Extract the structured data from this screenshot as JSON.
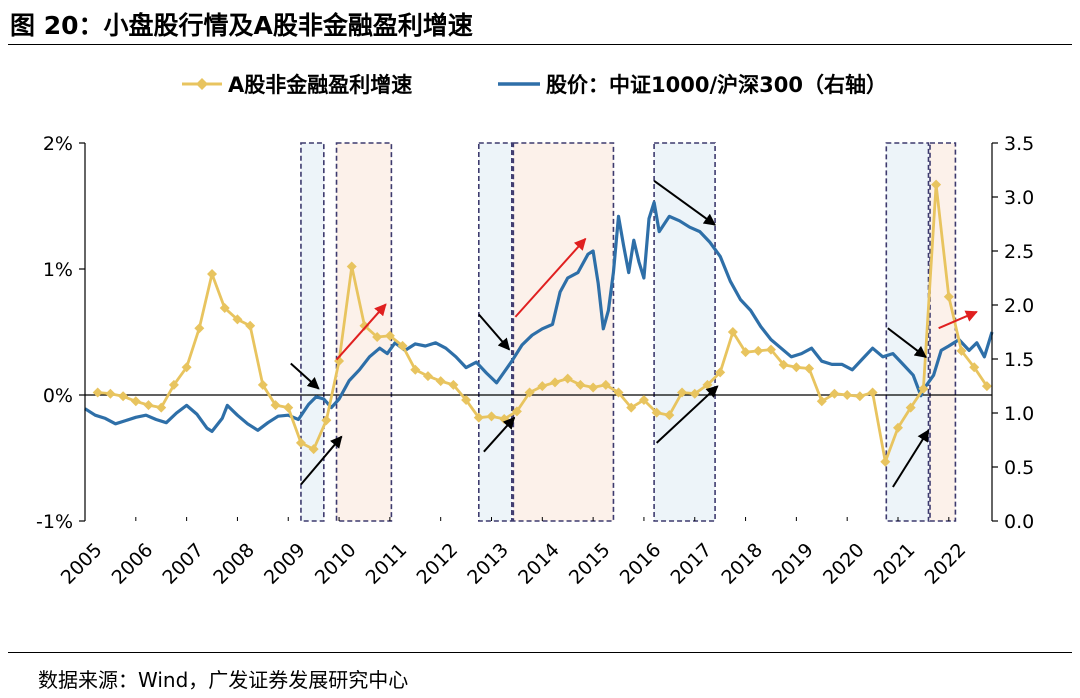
{
  "figure_title": "图 20：小盘股行情及A股非金融盈利增速",
  "source": "数据来源：Wind，广发证券发展研究中心",
  "colors": {
    "earnings": "#E8C45F",
    "price": "#2E6FA8",
    "shade_blue": "#EDF4F9",
    "shade_pink": "#FCF1EA",
    "box": "#3D3A6E",
    "arrow_black": "#000000",
    "arrow_red": "#E02020"
  },
  "chart_data": {
    "type": "line",
    "legend": [
      "A股非金融盈利增速",
      "股价：中证1000/沪深300（右轴）"
    ],
    "x_tick_labels": [
      "2005",
      "2006",
      "2007",
      "2008",
      "2009",
      "2010",
      "2011",
      "2012",
      "2013",
      "2014",
      "2015",
      "2016",
      "2017",
      "2018",
      "2019",
      "2020",
      "2021",
      "2022"
    ],
    "xlim": [
      2005.0,
      2022.85
    ],
    "y_left": {
      "ticks": [
        "-1%",
        "0%",
        "1%",
        "2%"
      ],
      "values": [
        -1,
        0,
        1,
        2
      ],
      "ylim": [
        -1,
        2
      ],
      "unit": "%"
    },
    "y_right": {
      "ticks": [
        "0.0",
        "0.5",
        "1.0",
        "1.5",
        "2.0",
        "2.5",
        "3.0",
        "3.5"
      ],
      "values": [
        0,
        0.5,
        1,
        1.5,
        2,
        2.5,
        3,
        3.5
      ],
      "ylim": [
        0,
        3.5
      ]
    },
    "series": [
      {
        "name": "A股非金融盈利增速",
        "axis": "left",
        "marker": "diamond",
        "points": [
          [
            2005.25,
            0.02
          ],
          [
            2005.5,
            0.01
          ],
          [
            2005.75,
            -0.01
          ],
          [
            2006.0,
            -0.05
          ],
          [
            2006.25,
            -0.08
          ],
          [
            2006.5,
            -0.1
          ],
          [
            2006.75,
            0.08
          ],
          [
            2007.0,
            0.22
          ],
          [
            2007.25,
            0.53
          ],
          [
            2007.5,
            0.96
          ],
          [
            2007.75,
            0.69
          ],
          [
            2008.0,
            0.6
          ],
          [
            2008.25,
            0.55
          ],
          [
            2008.5,
            0.08
          ],
          [
            2008.75,
            -0.08
          ],
          [
            2009.0,
            -0.1
          ],
          [
            2009.25,
            -0.38
          ],
          [
            2009.5,
            -0.43
          ],
          [
            2009.75,
            -0.2
          ],
          [
            2010.0,
            0.27
          ],
          [
            2010.25,
            1.02
          ],
          [
            2010.5,
            0.55
          ],
          [
            2010.75,
            0.46
          ],
          [
            2011.0,
            0.47
          ],
          [
            2011.25,
            0.39
          ],
          [
            2011.5,
            0.2
          ],
          [
            2011.75,
            0.15
          ],
          [
            2012.0,
            0.11
          ],
          [
            2012.25,
            0.08
          ],
          [
            2012.5,
            -0.04
          ],
          [
            2012.75,
            -0.18
          ],
          [
            2013.0,
            -0.17
          ],
          [
            2013.25,
            -0.19
          ],
          [
            2013.5,
            -0.13
          ],
          [
            2013.75,
            0.02
          ],
          [
            2014.0,
            0.07
          ],
          [
            2014.25,
            0.1
          ],
          [
            2014.5,
            0.13
          ],
          [
            2014.75,
            0.08
          ],
          [
            2015.0,
            0.06
          ],
          [
            2015.25,
            0.08
          ],
          [
            2015.5,
            0.02
          ],
          [
            2015.75,
            -0.1
          ],
          [
            2016.0,
            -0.04
          ],
          [
            2016.25,
            -0.14
          ],
          [
            2016.5,
            -0.16
          ],
          [
            2016.75,
            0.02
          ],
          [
            2017.0,
            0.01
          ],
          [
            2017.25,
            0.08
          ],
          [
            2017.5,
            0.18
          ],
          [
            2017.75,
            0.5
          ],
          [
            2018.0,
            0.34
          ],
          [
            2018.25,
            0.35
          ],
          [
            2018.5,
            0.36
          ],
          [
            2018.75,
            0.24
          ],
          [
            2019.0,
            0.22
          ],
          [
            2019.25,
            0.21
          ],
          [
            2019.5,
            -0.05
          ],
          [
            2019.75,
            0.01
          ],
          [
            2020.0,
            0.0
          ],
          [
            2020.25,
            -0.01
          ],
          [
            2020.5,
            0.02
          ],
          [
            2020.75,
            -0.53
          ],
          [
            2021.0,
            -0.26
          ],
          [
            2021.25,
            -0.1
          ],
          [
            2021.5,
            0.05
          ],
          [
            2021.75,
            1.67
          ],
          [
            2022.0,
            0.78
          ],
          [
            2022.25,
            0.35
          ],
          [
            2022.5,
            0.22
          ],
          [
            2022.75,
            0.07
          ]
        ]
      },
      {
        "name": "股价：中证1000/沪深300（右轴）",
        "axis": "right",
        "points": [
          [
            2005.0,
            1.04
          ],
          [
            2005.2,
            0.98
          ],
          [
            2005.4,
            0.95
          ],
          [
            2005.6,
            0.9
          ],
          [
            2005.8,
            0.93
          ],
          [
            2006.0,
            0.96
          ],
          [
            2006.2,
            0.98
          ],
          [
            2006.4,
            0.94
          ],
          [
            2006.6,
            0.91
          ],
          [
            2006.8,
            1.0
          ],
          [
            2007.0,
            1.07
          ],
          [
            2007.2,
            0.99
          ],
          [
            2007.4,
            0.86
          ],
          [
            2007.5,
            0.83
          ],
          [
            2007.7,
            0.95
          ],
          [
            2007.8,
            1.07
          ],
          [
            2008.0,
            0.98
          ],
          [
            2008.2,
            0.9
          ],
          [
            2008.4,
            0.84
          ],
          [
            2008.6,
            0.91
          ],
          [
            2008.8,
            0.97
          ],
          [
            2009.0,
            0.98
          ],
          [
            2009.2,
            0.94
          ],
          [
            2009.4,
            1.08
          ],
          [
            2009.55,
            1.15
          ],
          [
            2009.7,
            1.13
          ],
          [
            2009.85,
            1.05
          ],
          [
            2010.0,
            1.13
          ],
          [
            2010.2,
            1.3
          ],
          [
            2010.4,
            1.4
          ],
          [
            2010.6,
            1.52
          ],
          [
            2010.8,
            1.6
          ],
          [
            2010.95,
            1.55
          ],
          [
            2011.1,
            1.65
          ],
          [
            2011.3,
            1.58
          ],
          [
            2011.5,
            1.64
          ],
          [
            2011.7,
            1.62
          ],
          [
            2011.9,
            1.65
          ],
          [
            2012.1,
            1.6
          ],
          [
            2012.3,
            1.52
          ],
          [
            2012.5,
            1.42
          ],
          [
            2012.7,
            1.47
          ],
          [
            2012.9,
            1.37
          ],
          [
            2013.1,
            1.28
          ],
          [
            2013.25,
            1.38
          ],
          [
            2013.4,
            1.48
          ],
          [
            2013.6,
            1.63
          ],
          [
            2013.8,
            1.72
          ],
          [
            2014.0,
            1.78
          ],
          [
            2014.2,
            1.82
          ],
          [
            2014.35,
            2.12
          ],
          [
            2014.5,
            2.25
          ],
          [
            2014.7,
            2.3
          ],
          [
            2014.9,
            2.47
          ],
          [
            2015.0,
            2.5
          ],
          [
            2015.1,
            2.2
          ],
          [
            2015.2,
            1.78
          ],
          [
            2015.3,
            1.95
          ],
          [
            2015.4,
            2.3
          ],
          [
            2015.5,
            2.82
          ],
          [
            2015.6,
            2.55
          ],
          [
            2015.7,
            2.3
          ],
          [
            2015.8,
            2.6
          ],
          [
            2015.9,
            2.4
          ],
          [
            2016.0,
            2.25
          ],
          [
            2016.1,
            2.8
          ],
          [
            2016.2,
            2.95
          ],
          [
            2016.3,
            2.68
          ],
          [
            2016.5,
            2.82
          ],
          [
            2016.7,
            2.78
          ],
          [
            2016.9,
            2.72
          ],
          [
            2017.1,
            2.68
          ],
          [
            2017.3,
            2.58
          ],
          [
            2017.5,
            2.45
          ],
          [
            2017.7,
            2.22
          ],
          [
            2017.9,
            2.05
          ],
          [
            2018.1,
            1.95
          ],
          [
            2018.3,
            1.8
          ],
          [
            2018.5,
            1.68
          ],
          [
            2018.7,
            1.6
          ],
          [
            2018.9,
            1.52
          ],
          [
            2019.1,
            1.55
          ],
          [
            2019.3,
            1.6
          ],
          [
            2019.5,
            1.48
          ],
          [
            2019.7,
            1.45
          ],
          [
            2019.9,
            1.45
          ],
          [
            2020.1,
            1.4
          ],
          [
            2020.3,
            1.5
          ],
          [
            2020.5,
            1.6
          ],
          [
            2020.7,
            1.52
          ],
          [
            2020.9,
            1.55
          ],
          [
            2021.1,
            1.45
          ],
          [
            2021.3,
            1.35
          ],
          [
            2021.45,
            1.16
          ],
          [
            2021.55,
            1.25
          ],
          [
            2021.7,
            1.35
          ],
          [
            2021.85,
            1.58
          ],
          [
            2022.0,
            1.62
          ],
          [
            2022.2,
            1.68
          ],
          [
            2022.4,
            1.58
          ],
          [
            2022.55,
            1.65
          ],
          [
            2022.7,
            1.52
          ],
          [
            2022.85,
            1.75
          ]
        ]
      }
    ],
    "shaded_periods": [
      {
        "fill": "blue",
        "x0": 2009.25,
        "x1": 2009.7
      },
      {
        "fill": "pink",
        "x0": 2009.95,
        "x1": 2011.03
      },
      {
        "fill": "blue",
        "x0": 2012.75,
        "x1": 2013.4
      },
      {
        "fill": "pink",
        "x0": 2013.43,
        "x1": 2015.4
      },
      {
        "fill": "blue",
        "x0": 2016.2,
        "x1": 2017.4
      },
      {
        "fill": "blue",
        "x0": 2020.77,
        "x1": 2021.6
      },
      {
        "fill": "pink",
        "x0": 2021.63,
        "x1": 2022.13
      }
    ],
    "annotation_arrows": [
      {
        "color": "black",
        "from": [
          2009.05,
          0.25
        ],
        "to": [
          2009.6,
          0.05
        ]
      },
      {
        "color": "black",
        "from": [
          2009.25,
          -0.71
        ],
        "to": [
          2010.05,
          -0.33
        ]
      },
      {
        "color": "red",
        "from": [
          2009.95,
          0.28
        ],
        "to": [
          2010.92,
          0.72
        ]
      },
      {
        "color": "black",
        "from": [
          2012.75,
          0.64
        ],
        "to": [
          2013.35,
          0.36
        ]
      },
      {
        "color": "black",
        "from": [
          2012.85,
          -0.45
        ],
        "to": [
          2013.45,
          -0.18
        ]
      },
      {
        "color": "red",
        "from": [
          2013.47,
          0.62
        ],
        "to": [
          2014.85,
          1.24
        ]
      },
      {
        "color": "black",
        "from": [
          2016.2,
          1.7
        ],
        "to": [
          2017.4,
          1.35
        ]
      },
      {
        "color": "black",
        "from": [
          2016.25,
          -0.38
        ],
        "to": [
          2017.45,
          0.07
        ]
      },
      {
        "color": "black",
        "from": [
          2020.8,
          0.53
        ],
        "to": [
          2021.55,
          0.3
        ]
      },
      {
        "color": "black",
        "from": [
          2020.9,
          -0.73
        ],
        "to": [
          2021.6,
          -0.28
        ]
      },
      {
        "color": "red",
        "from": [
          2021.8,
          0.53
        ],
        "to": [
          2022.55,
          0.66
        ]
      }
    ]
  }
}
